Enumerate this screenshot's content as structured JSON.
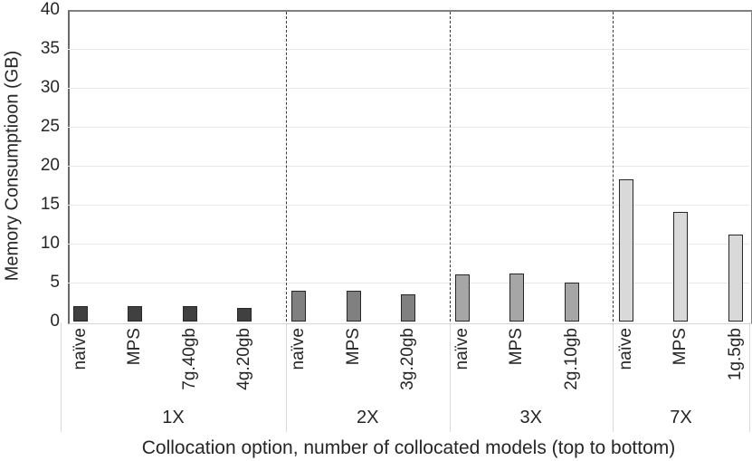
{
  "chart_data": {
    "type": "bar",
    "title": "",
    "ylabel": "Memory Consumptioon (GB)",
    "xlabel": "Collocation option, number of collocated models (top to bottom)",
    "ylim": [
      0,
      40
    ],
    "yticks": [
      0,
      5,
      10,
      15,
      20,
      25,
      30,
      35,
      40
    ],
    "grid": "horizontal-light",
    "legend_position": "none",
    "group_separator_style": "vertical-dashed",
    "bar_border_color": "#262626",
    "gridline_color": "#e8e8e8",
    "groups": [
      {
        "label": "1X",
        "bar_color": "#404040",
        "bars": [
          {
            "label": "naïve",
            "value": 2.0
          },
          {
            "label": "MPS",
            "value": 2.0
          },
          {
            "label": "7g.40gb",
            "value": 2.0
          },
          {
            "label": "4g.20gb",
            "value": 1.8
          }
        ]
      },
      {
        "label": "2X",
        "bar_color": "#808080",
        "bars": [
          {
            "label": "naïve",
            "value": 4.0
          },
          {
            "label": "MPS",
            "value": 4.0
          },
          {
            "label": "3g.20gb",
            "value": 3.5
          }
        ]
      },
      {
        "label": "3X",
        "bar_color": "#a6a6a6",
        "bars": [
          {
            "label": "naïve",
            "value": 6.0
          },
          {
            "label": "MPS",
            "value": 6.2
          },
          {
            "label": "2g.10gb",
            "value": 5.0
          }
        ]
      },
      {
        "label": "7X",
        "bar_color": "#d9d9d9",
        "bars": [
          {
            "label": "naïve",
            "value": 18.3
          },
          {
            "label": "MPS",
            "value": 14.1
          },
          {
            "label": "1g.5gb",
            "value": 11.2
          }
        ]
      }
    ]
  }
}
